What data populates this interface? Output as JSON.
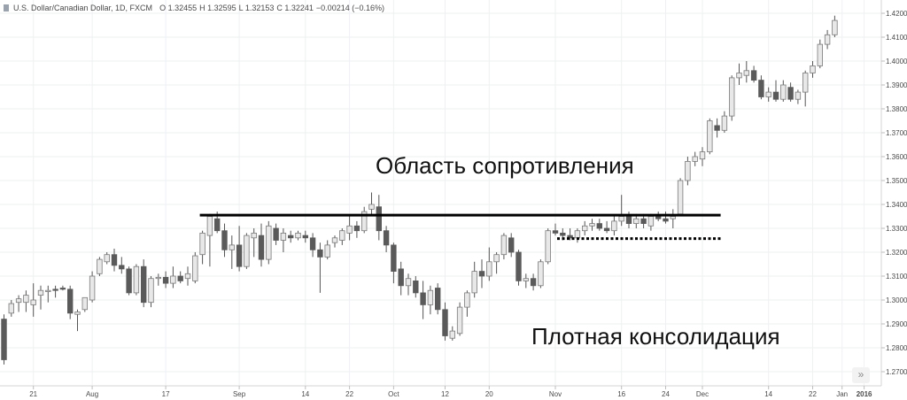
{
  "legend": {
    "symbol": "U.S. Dollar/Canadian Dollar, 1D, FXCM",
    "open": "O 1.32455",
    "high": "H 1.32595",
    "low": "L 1.32153",
    "close": "C 1.32241",
    "change": "−0.00214 (−0.16%)"
  },
  "scroll_icon": "»",
  "colors": {
    "up_candle": "#e8e8e8",
    "down_candle": "#5a5a5a",
    "wick": "#555555",
    "grid": "#eef0f2",
    "axis_text": "#4a4a4a",
    "annotation": "#000000"
  },
  "chart_data": {
    "type": "candlestick",
    "title": "U.S. Dollar/Canadian Dollar, 1D, FXCM",
    "ylim": [
      1.265,
      1.4225
    ],
    "y_ticks": [
      "1.27000",
      "1.28000",
      "1.29000",
      "1.30000",
      "1.31000",
      "1.32000",
      "1.33000",
      "1.34000",
      "1.35000",
      "1.36000",
      "1.37000",
      "1.38000",
      "1.39000",
      "1.40000",
      "1.41000",
      "1.42000"
    ],
    "x_ticks": [
      {
        "label": "21",
        "index": 4
      },
      {
        "label": "Aug",
        "index": 12
      },
      {
        "label": "17",
        "index": 22
      },
      {
        "label": "Sep",
        "index": 32
      },
      {
        "label": "14",
        "index": 41
      },
      {
        "label": "22",
        "index": 47
      },
      {
        "label": "Oct",
        "index": 53
      },
      {
        "label": "12",
        "index": 60
      },
      {
        "label": "20",
        "index": 66
      },
      {
        "label": "Nov",
        "index": 75
      },
      {
        "label": "16",
        "index": 84
      },
      {
        "label": "24",
        "index": 90
      },
      {
        "label": "Dec",
        "index": 95
      },
      {
        "label": "14",
        "index": 104
      },
      {
        "label": "22",
        "index": 110
      },
      {
        "label": "Jan",
        "index": 114
      },
      {
        "label": "2016",
        "index": 117
      }
    ],
    "candles": [
      {
        "o": 1.292,
        "h": 1.294,
        "l": 1.273,
        "c": 1.275
      },
      {
        "o": 1.2945,
        "h": 1.3,
        "l": 1.293,
        "c": 1.2985
      },
      {
        "o": 1.299,
        "h": 1.302,
        "l": 1.295,
        "c": 1.3005
      },
      {
        "o": 1.299,
        "h": 1.304,
        "l": 1.295,
        "c": 1.302
      },
      {
        "o": 1.298,
        "h": 1.307,
        "l": 1.293,
        "c": 1.3
      },
      {
        "o": 1.302,
        "h": 1.306,
        "l": 1.296,
        "c": 1.304
      },
      {
        "o": 1.3035,
        "h": 1.306,
        "l": 1.299,
        "c": 1.304
      },
      {
        "o": 1.3045,
        "h": 1.306,
        "l": 1.301,
        "c": 1.304
      },
      {
        "o": 1.305,
        "h": 1.306,
        "l": 1.304,
        "c": 1.3045
      },
      {
        "o": 1.3045,
        "h": 1.306,
        "l": 1.292,
        "c": 1.2945
      },
      {
        "o": 1.294,
        "h": 1.296,
        "l": 1.287,
        "c": 1.295
      },
      {
        "o": 1.296,
        "h": 1.3,
        "l": 1.295,
        "c": 1.301
      },
      {
        "o": 1.3,
        "h": 1.312,
        "l": 1.299,
        "c": 1.31
      },
      {
        "o": 1.311,
        "h": 1.318,
        "l": 1.31,
        "c": 1.317
      },
      {
        "o": 1.316,
        "h": 1.32,
        "l": 1.315,
        "c": 1.319
      },
      {
        "o": 1.319,
        "h": 1.3215,
        "l": 1.312,
        "c": 1.3145
      },
      {
        "o": 1.3145,
        "h": 1.318,
        "l": 1.311,
        "c": 1.313
      },
      {
        "o": 1.313,
        "h": 1.314,
        "l": 1.302,
        "c": 1.303
      },
      {
        "o": 1.303,
        "h": 1.315,
        "l": 1.302,
        "c": 1.314
      },
      {
        "o": 1.314,
        "h": 1.317,
        "l": 1.297,
        "c": 1.299
      },
      {
        "o": 1.299,
        "h": 1.31,
        "l": 1.297,
        "c": 1.309
      },
      {
        "o": 1.309,
        "h": 1.311,
        "l": 1.306,
        "c": 1.3095
      },
      {
        "o": 1.3095,
        "h": 1.312,
        "l": 1.305,
        "c": 1.307
      },
      {
        "o": 1.307,
        "h": 1.314,
        "l": 1.305,
        "c": 1.31
      },
      {
        "o": 1.31,
        "h": 1.312,
        "l": 1.307,
        "c": 1.308
      },
      {
        "o": 1.309,
        "h": 1.314,
        "l": 1.306,
        "c": 1.311
      },
      {
        "o": 1.308,
        "h": 1.32,
        "l": 1.307,
        "c": 1.3185
      },
      {
        "o": 1.319,
        "h": 1.329,
        "l": 1.315,
        "c": 1.328
      },
      {
        "o": 1.327,
        "h": 1.336,
        "l": 1.314,
        "c": 1.335
      },
      {
        "o": 1.334,
        "h": 1.337,
        "l": 1.328,
        "c": 1.329
      },
      {
        "o": 1.329,
        "h": 1.332,
        "l": 1.318,
        "c": 1.321
      },
      {
        "o": 1.321,
        "h": 1.327,
        "l": 1.313,
        "c": 1.323
      },
      {
        "o": 1.323,
        "h": 1.331,
        "l": 1.312,
        "c": 1.314
      },
      {
        "o": 1.314,
        "h": 1.328,
        "l": 1.313,
        "c": 1.327
      },
      {
        "o": 1.326,
        "h": 1.33,
        "l": 1.318,
        "c": 1.328
      },
      {
        "o": 1.327,
        "h": 1.332,
        "l": 1.314,
        "c": 1.317
      },
      {
        "o": 1.317,
        "h": 1.333,
        "l": 1.315,
        "c": 1.331
      },
      {
        "o": 1.33,
        "h": 1.332,
        "l": 1.323,
        "c": 1.325
      },
      {
        "o": 1.325,
        "h": 1.33,
        "l": 1.32,
        "c": 1.328
      },
      {
        "o": 1.327,
        "h": 1.329,
        "l": 1.324,
        "c": 1.326
      },
      {
        "o": 1.326,
        "h": 1.329,
        "l": 1.325,
        "c": 1.328
      },
      {
        "o": 1.327,
        "h": 1.329,
        "l": 1.324,
        "c": 1.326
      },
      {
        "o": 1.326,
        "h": 1.328,
        "l": 1.318,
        "c": 1.321
      },
      {
        "o": 1.321,
        "h": 1.324,
        "l": 1.303,
        "c": 1.318
      },
      {
        "o": 1.318,
        "h": 1.325,
        "l": 1.317,
        "c": 1.323
      },
      {
        "o": 1.324,
        "h": 1.327,
        "l": 1.322,
        "c": 1.326
      },
      {
        "o": 1.325,
        "h": 1.33,
        "l": 1.323,
        "c": 1.329
      },
      {
        "o": 1.328,
        "h": 1.335,
        "l": 1.325,
        "c": 1.331
      },
      {
        "o": 1.331,
        "h": 1.333,
        "l": 1.326,
        "c": 1.329
      },
      {
        "o": 1.329,
        "h": 1.339,
        "l": 1.328,
        "c": 1.337
      },
      {
        "o": 1.338,
        "h": 1.345,
        "l": 1.335,
        "c": 1.34
      },
      {
        "o": 1.339,
        "h": 1.344,
        "l": 1.325,
        "c": 1.329
      },
      {
        "o": 1.329,
        "h": 1.331,
        "l": 1.32,
        "c": 1.323
      },
      {
        "o": 1.323,
        "h": 1.324,
        "l": 1.307,
        "c": 1.312
      },
      {
        "o": 1.313,
        "h": 1.316,
        "l": 1.302,
        "c": 1.306
      },
      {
        "o": 1.306,
        "h": 1.311,
        "l": 1.302,
        "c": 1.309
      },
      {
        "o": 1.308,
        "h": 1.31,
        "l": 1.301,
        "c": 1.303
      },
      {
        "o": 1.303,
        "h": 1.308,
        "l": 1.292,
        "c": 1.298
      },
      {
        "o": 1.298,
        "h": 1.306,
        "l": 1.294,
        "c": 1.304
      },
      {
        "o": 1.305,
        "h": 1.307,
        "l": 1.294,
        "c": 1.296
      },
      {
        "o": 1.296,
        "h": 1.299,
        "l": 1.283,
        "c": 1.285
      },
      {
        "o": 1.284,
        "h": 1.289,
        "l": 1.283,
        "c": 1.287
      },
      {
        "o": 1.286,
        "h": 1.299,
        "l": 1.285,
        "c": 1.297
      },
      {
        "o": 1.297,
        "h": 1.304,
        "l": 1.293,
        "c": 1.303
      },
      {
        "o": 1.303,
        "h": 1.316,
        "l": 1.301,
        "c": 1.312
      },
      {
        "o": 1.312,
        "h": 1.317,
        "l": 1.305,
        "c": 1.31
      },
      {
        "o": 1.31,
        "h": 1.322,
        "l": 1.308,
        "c": 1.316
      },
      {
        "o": 1.316,
        "h": 1.32,
        "l": 1.311,
        "c": 1.319
      },
      {
        "o": 1.319,
        "h": 1.328,
        "l": 1.317,
        "c": 1.327
      },
      {
        "o": 1.326,
        "h": 1.328,
        "l": 1.318,
        "c": 1.32
      },
      {
        "o": 1.32,
        "h": 1.321,
        "l": 1.306,
        "c": 1.308
      },
      {
        "o": 1.308,
        "h": 1.311,
        "l": 1.305,
        "c": 1.309
      },
      {
        "o": 1.309,
        "h": 1.311,
        "l": 1.304,
        "c": 1.306
      },
      {
        "o": 1.306,
        "h": 1.317,
        "l": 1.305,
        "c": 1.316
      },
      {
        "o": 1.316,
        "h": 1.33,
        "l": 1.315,
        "c": 1.329
      },
      {
        "o": 1.329,
        "h": 1.332,
        "l": 1.327,
        "c": 1.328
      },
      {
        "o": 1.328,
        "h": 1.33,
        "l": 1.325,
        "c": 1.327
      },
      {
        "o": 1.327,
        "h": 1.33,
        "l": 1.325,
        "c": 1.326
      },
      {
        "o": 1.326,
        "h": 1.33,
        "l": 1.324,
        "c": 1.329
      },
      {
        "o": 1.329,
        "h": 1.333,
        "l": 1.327,
        "c": 1.331
      },
      {
        "o": 1.331,
        "h": 1.334,
        "l": 1.329,
        "c": 1.332
      },
      {
        "o": 1.332,
        "h": 1.334,
        "l": 1.329,
        "c": 1.33
      },
      {
        "o": 1.33,
        "h": 1.333,
        "l": 1.328,
        "c": 1.329
      },
      {
        "o": 1.329,
        "h": 1.335,
        "l": 1.327,
        "c": 1.333
      },
      {
        "o": 1.333,
        "h": 1.344,
        "l": 1.331,
        "c": 1.335
      },
      {
        "o": 1.335,
        "h": 1.337,
        "l": 1.33,
        "c": 1.332
      },
      {
        "o": 1.332,
        "h": 1.336,
        "l": 1.33,
        "c": 1.334
      },
      {
        "o": 1.334,
        "h": 1.336,
        "l": 1.33,
        "c": 1.332
      },
      {
        "o": 1.331,
        "h": 1.336,
        "l": 1.329,
        "c": 1.335
      },
      {
        "o": 1.335,
        "h": 1.337,
        "l": 1.333,
        "c": 1.334
      },
      {
        "o": 1.334,
        "h": 1.337,
        "l": 1.332,
        "c": 1.333
      },
      {
        "o": 1.334,
        "h": 1.338,
        "l": 1.33,
        "c": 1.335
      },
      {
        "o": 1.336,
        "h": 1.351,
        "l": 1.335,
        "c": 1.35
      },
      {
        "o": 1.35,
        "h": 1.36,
        "l": 1.348,
        "c": 1.358
      },
      {
        "o": 1.358,
        "h": 1.362,
        "l": 1.356,
        "c": 1.36
      },
      {
        "o": 1.359,
        "h": 1.364,
        "l": 1.356,
        "c": 1.362
      },
      {
        "o": 1.362,
        "h": 1.376,
        "l": 1.361,
        "c": 1.375
      },
      {
        "o": 1.373,
        "h": 1.376,
        "l": 1.368,
        "c": 1.371
      },
      {
        "o": 1.371,
        "h": 1.379,
        "l": 1.37,
        "c": 1.377
      },
      {
        "o": 1.377,
        "h": 1.394,
        "l": 1.375,
        "c": 1.393
      },
      {
        "o": 1.393,
        "h": 1.399,
        "l": 1.39,
        "c": 1.395
      },
      {
        "o": 1.394,
        "h": 1.4,
        "l": 1.391,
        "c": 1.396
      },
      {
        "o": 1.396,
        "h": 1.398,
        "l": 1.391,
        "c": 1.392
      },
      {
        "o": 1.392,
        "h": 1.394,
        "l": 1.384,
        "c": 1.385
      },
      {
        "o": 1.385,
        "h": 1.389,
        "l": 1.383,
        "c": 1.387
      },
      {
        "o": 1.387,
        "h": 1.392,
        "l": 1.383,
        "c": 1.384
      },
      {
        "o": 1.384,
        "h": 1.392,
        "l": 1.383,
        "c": 1.39
      },
      {
        "o": 1.389,
        "h": 1.391,
        "l": 1.383,
        "c": 1.384
      },
      {
        "o": 1.384,
        "h": 1.388,
        "l": 1.382,
        "c": 1.387
      },
      {
        "o": 1.387,
        "h": 1.396,
        "l": 1.381,
        "c": 1.395
      },
      {
        "o": 1.395,
        "h": 1.4,
        "l": 1.393,
        "c": 1.398
      },
      {
        "o": 1.398,
        "h": 1.409,
        "l": 1.397,
        "c": 1.407
      },
      {
        "o": 1.407,
        "h": 1.413,
        "l": 1.405,
        "c": 1.411
      },
      {
        "o": 1.411,
        "h": 1.419,
        "l": 1.41,
        "c": 1.417
      }
    ],
    "annotations": {
      "resistance_label": "Область сопротивления",
      "consolidation_label": "Плотная консолидация",
      "resistance_level": 1.3355,
      "resistance_from_index": 27,
      "resistance_to_index": 97,
      "consolidation_level": 1.3257,
      "consolidation_from_index": 75,
      "consolidation_to_index": 97
    }
  }
}
